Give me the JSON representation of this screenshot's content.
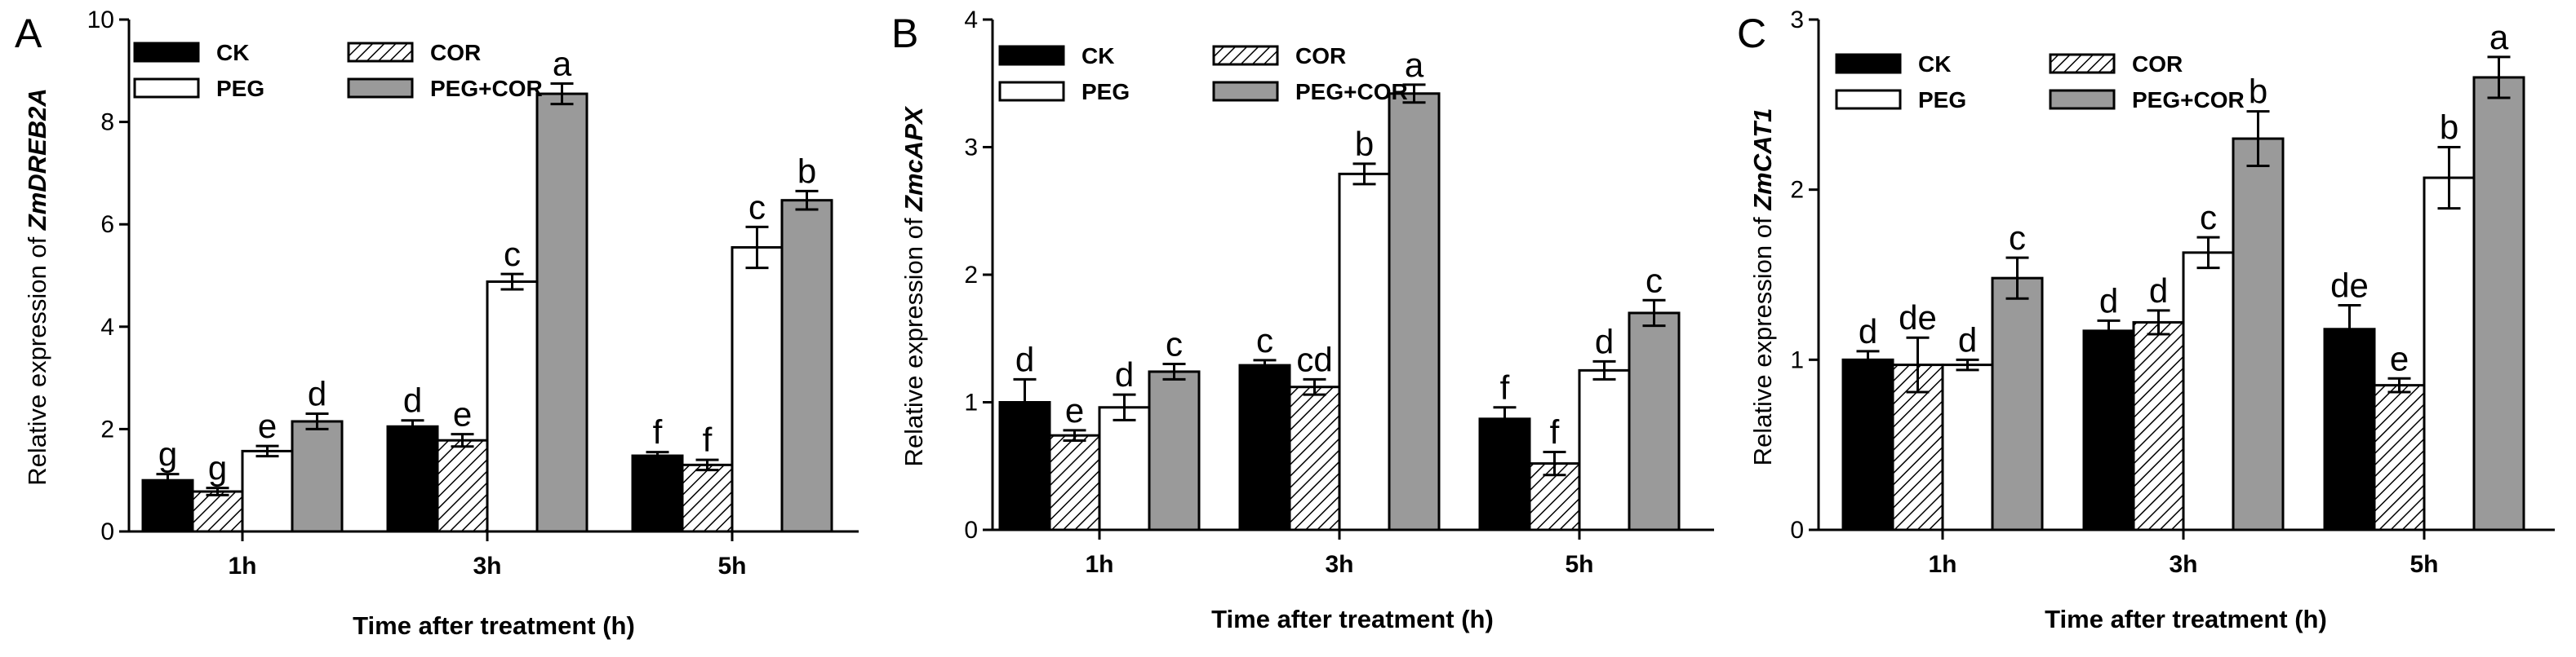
{
  "chart_data": [
    {
      "type": "bar",
      "panel": "A",
      "gene": "ZmDREB2A",
      "ylabel_prefix": "Relative expression of ",
      "xlabel": "Time after treatment (h)",
      "ylim": [
        0,
        10
      ],
      "yticks": [
        0,
        2,
        4,
        6,
        8,
        10
      ],
      "ytick_labels": [
        "0",
        "2",
        "4",
        "6",
        "8",
        "10"
      ],
      "categories": [
        "1h",
        "3h",
        "5h"
      ],
      "series": [
        {
          "name": "CK",
          "fill": "black",
          "values": [
            1.0,
            2.05,
            1.48
          ],
          "errors": [
            0.12,
            0.12,
            0.07
          ],
          "sig": [
            "g",
            "d",
            "f"
          ]
        },
        {
          "name": "COR",
          "fill": "hatch",
          "values": [
            0.78,
            1.78,
            1.3
          ],
          "errors": [
            0.07,
            0.12,
            0.1
          ],
          "sig": [
            "g",
            "e",
            "f"
          ]
        },
        {
          "name": "PEG",
          "fill": "white",
          "values": [
            1.57,
            4.88,
            5.55
          ],
          "errors": [
            0.1,
            0.15,
            0.4
          ],
          "sig": [
            "e",
            "c",
            "c"
          ]
        },
        {
          "name": "PEG+COR",
          "fill": "gray",
          "values": [
            2.15,
            8.55,
            6.47
          ],
          "errors": [
            0.15,
            0.2,
            0.18
          ],
          "sig": [
            "d",
            "a",
            "b"
          ]
        }
      ],
      "legend": {
        "position": "top-left",
        "entries": [
          "CK",
          "COR",
          "PEG",
          "PEG+COR"
        ]
      }
    },
    {
      "type": "bar",
      "panel": "B",
      "gene": "ZmcAPX",
      "ylabel_prefix": "Relative expression of ",
      "xlabel": "Time after treatment (h)",
      "ylim": [
        0,
        4
      ],
      "yticks": [
        0,
        1,
        2,
        3,
        4
      ],
      "ytick_labels": [
        "0",
        "1",
        "2",
        "3",
        "4"
      ],
      "categories": [
        "1h",
        "3h",
        "5h"
      ],
      "series": [
        {
          "name": "CK",
          "fill": "black",
          "values": [
            1.0,
            1.29,
            0.87
          ],
          "errors": [
            0.18,
            0.04,
            0.09
          ],
          "sig": [
            "d",
            "c",
            "f"
          ]
        },
        {
          "name": "COR",
          "fill": "hatch",
          "values": [
            0.74,
            1.12,
            0.52
          ],
          "errors": [
            0.04,
            0.06,
            0.09
          ],
          "sig": [
            "e",
            "cd",
            "f"
          ]
        },
        {
          "name": "PEG",
          "fill": "white",
          "values": [
            0.96,
            2.79,
            1.25
          ],
          "errors": [
            0.1,
            0.08,
            0.07
          ],
          "sig": [
            "d",
            "b",
            "d"
          ]
        },
        {
          "name": "PEG+COR",
          "fill": "gray",
          "values": [
            1.24,
            3.42,
            1.7
          ],
          "errors": [
            0.06,
            0.07,
            0.1
          ],
          "sig": [
            "c",
            "a",
            "c"
          ]
        }
      ],
      "legend": {
        "position": "top-left",
        "entries": [
          "CK",
          "COR",
          "PEG",
          "PEG+COR"
        ]
      }
    },
    {
      "type": "bar",
      "panel": "C",
      "gene": "ZmCAT1",
      "ylabel_prefix": "Relative expression of ",
      "xlabel": "Time after treatment (h)",
      "ylim": [
        0,
        3
      ],
      "yticks": [
        0,
        1,
        2,
        3
      ],
      "ytick_labels": [
        "0",
        "1",
        "2",
        "3"
      ],
      "categories": [
        "1h",
        "3h",
        "5h"
      ],
      "series": [
        {
          "name": "CK",
          "fill": "black",
          "values": [
            1.0,
            1.17,
            1.18
          ],
          "errors": [
            0.05,
            0.06,
            0.14
          ],
          "sig": [
            "d",
            "d",
            "de"
          ]
        },
        {
          "name": "COR",
          "fill": "hatch",
          "values": [
            0.97,
            1.22,
            0.85
          ],
          "errors": [
            0.16,
            0.07,
            0.04
          ],
          "sig": [
            "de",
            "d",
            "e"
          ]
        },
        {
          "name": "PEG",
          "fill": "white",
          "values": [
            0.97,
            1.63,
            2.07
          ],
          "errors": [
            0.03,
            0.09,
            0.18
          ],
          "sig": [
            "d",
            "c",
            "b"
          ]
        },
        {
          "name": "PEG+COR",
          "fill": "gray",
          "values": [
            1.48,
            2.3,
            2.66
          ],
          "errors": [
            0.12,
            0.16,
            0.12
          ],
          "sig": [
            "c",
            "b",
            "a"
          ]
        }
      ],
      "legend": {
        "position": "top-left",
        "entries": [
          "CK",
          "COR",
          "PEG",
          "PEG+COR"
        ]
      }
    }
  ]
}
